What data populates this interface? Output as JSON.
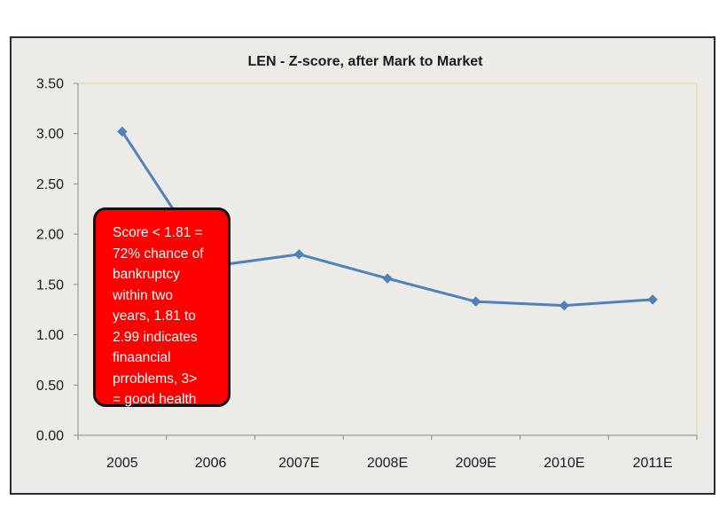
{
  "chart_data": {
    "type": "line",
    "title": "LEN - Z-score, after Mark to Market",
    "xlabel": "",
    "ylabel": "",
    "categories": [
      "2005",
      "2006",
      "2007E",
      "2008E",
      "2009E",
      "2010E",
      "2011E"
    ],
    "series": [
      {
        "values": [
          3.02,
          1.68,
          1.8,
          1.56,
          1.33,
          1.29,
          1.35
        ],
        "color": "#4f81bd",
        "marker": "diamond"
      }
    ],
    "ylim": [
      0,
      3.5
    ],
    "yticks": [
      "0.00",
      "0.50",
      "1.00",
      "1.50",
      "2.00",
      "2.50",
      "3.00",
      "3.50"
    ],
    "grid": false,
    "legend": "none",
    "plot_border_color": "#e6d98a",
    "annotation": {
      "lines": [
        "Score < 1.81 =",
        "72% chance of",
        "bankruptcy",
        "within two",
        "years, 1.81 to",
        "2.99 indicates",
        "finaancial",
        "prroblems, 3>",
        "= good health"
      ],
      "fill": "#ff0000",
      "text_color": "#ffffff"
    }
  }
}
